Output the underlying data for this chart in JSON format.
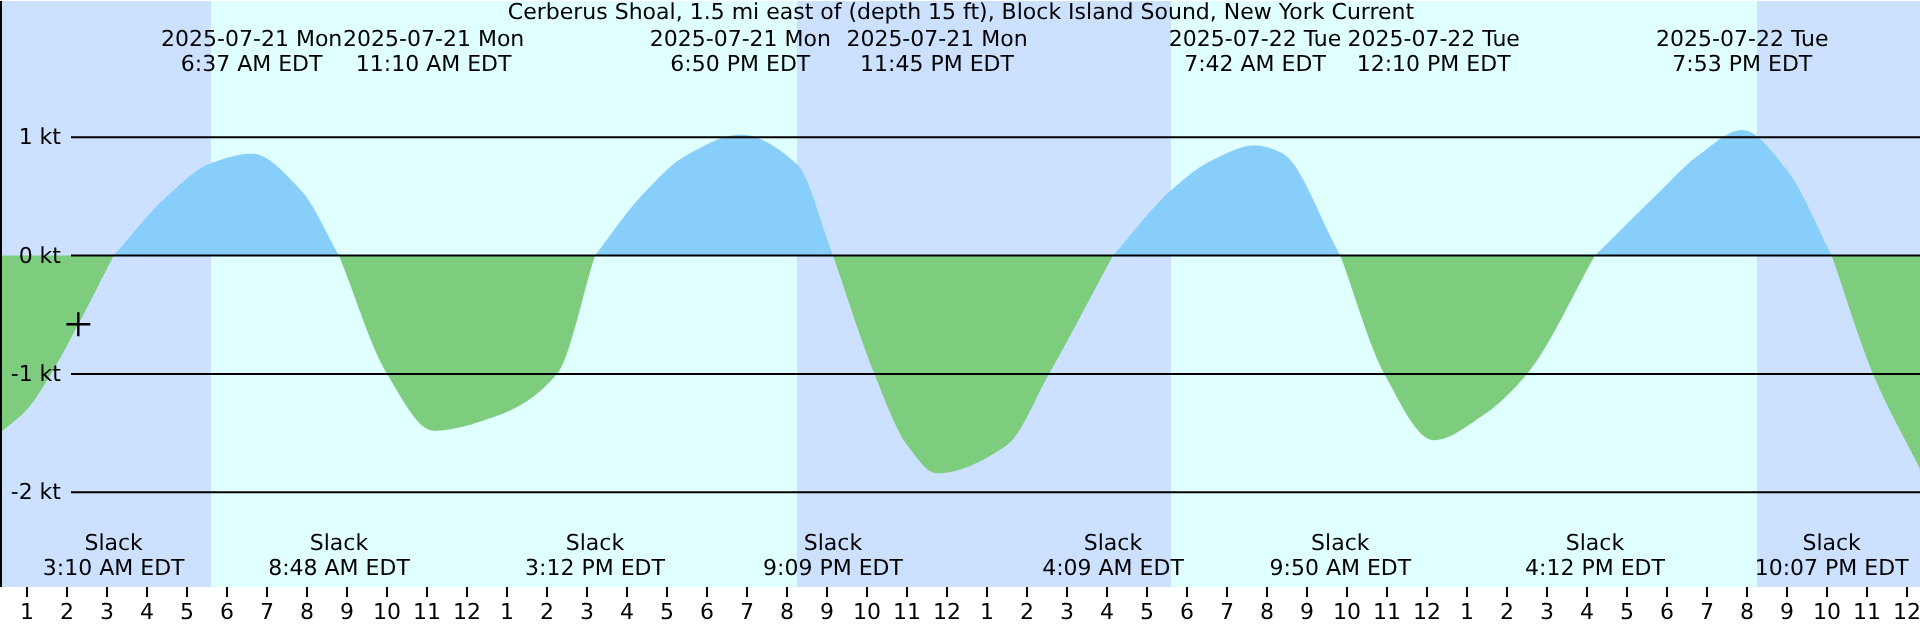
{
  "chart_data": {
    "type": "area",
    "title": "Cerberus Shoal, 1.5 mi east of (depth 15 ft), Block Island Sound, New York Current",
    "x": [
      "2025-07-21T00:21",
      "2025-07-21T01:00",
      "2025-07-21T01:36",
      "2025-07-21T02:17",
      "2025-07-21T03:10",
      "2025-07-21T04:30",
      "2025-07-21T05:36",
      "2025-07-21T06:37",
      "2025-07-21T07:51",
      "2025-07-21T08:48",
      "2025-07-21T10:00",
      "2025-07-21T11:10",
      "2025-07-21T12:42",
      "2025-07-21T14:15",
      "2025-07-21T15:12",
      "2025-07-21T16:21",
      "2025-07-21T17:30",
      "2025-07-21T18:50",
      "2025-07-21T20:15",
      "2025-07-21T21:09",
      "2025-07-21T22:11",
      "2025-07-21T23:00",
      "2025-07-21T23:45",
      "2025-07-22T01:30",
      "2025-07-22T02:33",
      "2025-07-22T04:09",
      "2025-07-22T05:36",
      "2025-07-22T06:36",
      "2025-07-22T07:42",
      "2025-07-22T08:21",
      "2025-07-22T09:50",
      "2025-07-22T10:56",
      "2025-07-22T12:10",
      "2025-07-22T13:24",
      "2025-07-22T14:30",
      "2025-07-22T16:12",
      "2025-07-22T17:42",
      "2025-07-22T18:48",
      "2025-07-22T19:53",
      "2025-07-22T21:00",
      "2025-07-22T22:07",
      "2025-07-22T23:09",
      "2025-07-23T00:21"
    ],
    "series": [
      {
        "color": "#87cefa",
        "values": [
          null,
          null,
          null,
          null,
          0,
          0.5,
          0.78,
          0.86,
          0.55,
          0,
          null,
          null,
          null,
          null,
          0,
          0.5,
          0.85,
          1.02,
          0.77,
          0,
          null,
          null,
          null,
          null,
          null,
          0,
          0.55,
          0.8,
          0.93,
          0.87,
          0,
          null,
          null,
          null,
          null,
          0,
          0.5,
          0.85,
          1.06,
          0.72,
          0,
          null,
          null
        ]
      },
      {
        "color": "#7ecd7e",
        "values": [
          -1.49,
          -1.3,
          -1.0,
          -0.58,
          0,
          null,
          null,
          null,
          null,
          0,
          -1.0,
          -1.48,
          -1.36,
          -1.0,
          0,
          null,
          null,
          null,
          null,
          0,
          -1.0,
          -1.6,
          -1.84,
          -1.6,
          -1.0,
          0,
          null,
          null,
          null,
          null,
          0,
          -1.0,
          -1.56,
          -1.35,
          -1.0,
          0,
          null,
          null,
          null,
          null,
          0,
          -1.0,
          -1.82
        ]
      },
      {
        "type": "scatter",
        "marker": "cross",
        "color": "#000000",
        "x": [
          "2025-07-21T02:17"
        ],
        "values": [
          -0.58
        ]
      }
    ],
    "xlim": [
      "2025-07-21T00:21",
      "2025-07-23T00:21"
    ],
    "ylim": [
      -2.8,
      2.15
    ],
    "xticks": [
      {
        "value": "2025-07-21T01:00",
        "label": "1"
      },
      {
        "value": "2025-07-21T02:00",
        "label": "2"
      },
      {
        "value": "2025-07-21T03:00",
        "label": "3"
      },
      {
        "value": "2025-07-21T04:00",
        "label": "4"
      },
      {
        "value": "2025-07-21T05:00",
        "label": "5"
      },
      {
        "value": "2025-07-21T06:00",
        "label": "6"
      },
      {
        "value": "2025-07-21T07:00",
        "label": "7"
      },
      {
        "value": "2025-07-21T08:00",
        "label": "8"
      },
      {
        "value": "2025-07-21T09:00",
        "label": "9"
      },
      {
        "value": "2025-07-21T10:00",
        "label": "10"
      },
      {
        "value": "2025-07-21T11:00",
        "label": "11"
      },
      {
        "value": "2025-07-21T12:00",
        "label": "12"
      },
      {
        "value": "2025-07-21T13:00",
        "label": "1"
      },
      {
        "value": "2025-07-21T14:00",
        "label": "2"
      },
      {
        "value": "2025-07-21T15:00",
        "label": "3"
      },
      {
        "value": "2025-07-21T16:00",
        "label": "4"
      },
      {
        "value": "2025-07-21T17:00",
        "label": "5"
      },
      {
        "value": "2025-07-21T18:00",
        "label": "6"
      },
      {
        "value": "2025-07-21T19:00",
        "label": "7"
      },
      {
        "value": "2025-07-21T20:00",
        "label": "8"
      },
      {
        "value": "2025-07-21T21:00",
        "label": "9"
      },
      {
        "value": "2025-07-21T22:00",
        "label": "10"
      },
      {
        "value": "2025-07-21T23:00",
        "label": "11"
      },
      {
        "value": "2025-07-22T00:00",
        "label": "12"
      },
      {
        "value": "2025-07-22T01:00",
        "label": "1"
      },
      {
        "value": "2025-07-22T02:00",
        "label": "2"
      },
      {
        "value": "2025-07-22T03:00",
        "label": "3"
      },
      {
        "value": "2025-07-22T04:00",
        "label": "4"
      },
      {
        "value": "2025-07-22T05:00",
        "label": "5"
      },
      {
        "value": "2025-07-22T06:00",
        "label": "6"
      },
      {
        "value": "2025-07-22T07:00",
        "label": "7"
      },
      {
        "value": "2025-07-22T08:00",
        "label": "8"
      },
      {
        "value": "2025-07-22T09:00",
        "label": "9"
      },
      {
        "value": "2025-07-22T10:00",
        "label": "10"
      },
      {
        "value": "2025-07-22T11:00",
        "label": "11"
      },
      {
        "value": "2025-07-22T12:00",
        "label": "12"
      },
      {
        "value": "2025-07-22T13:00",
        "label": "1"
      },
      {
        "value": "2025-07-22T14:00",
        "label": "2"
      },
      {
        "value": "2025-07-22T15:00",
        "label": "3"
      },
      {
        "value": "2025-07-22T16:00",
        "label": "4"
      },
      {
        "value": "2025-07-22T17:00",
        "label": "5"
      },
      {
        "value": "2025-07-22T18:00",
        "label": "6"
      },
      {
        "value": "2025-07-22T19:00",
        "label": "7"
      },
      {
        "value": "2025-07-22T20:00",
        "label": "8"
      },
      {
        "value": "2025-07-22T21:00",
        "label": "9"
      },
      {
        "value": "2025-07-22T22:00",
        "label": "10"
      },
      {
        "value": "2025-07-22T23:00",
        "label": "11"
      },
      {
        "value": "2025-07-23T00:00",
        "label": "12"
      }
    ],
    "yticks": [
      {
        "value": 1,
        "label": "1 kt"
      },
      {
        "value": 0,
        "label": "0 kt"
      },
      {
        "value": -1,
        "label": "-1 kt"
      },
      {
        "value": -2,
        "label": "-2 kt"
      }
    ],
    "grid": "y",
    "bands": [
      {
        "axis": "x",
        "from": "2025-07-21T00:21",
        "to": "2025-07-21T05:36",
        "color": "#cce0ff"
      },
      {
        "axis": "x",
        "from": "2025-07-21T05:36",
        "to": "2025-07-21T20:15",
        "color": "#e0ffff"
      },
      {
        "axis": "x",
        "from": "2025-07-21T20:15",
        "to": "2025-07-22T05:36",
        "color": "#cce0ff"
      },
      {
        "axis": "x",
        "from": "2025-07-22T05:36",
        "to": "2025-07-22T20:15",
        "color": "#e0ffff"
      },
      {
        "axis": "x",
        "from": "2025-07-22T20:15",
        "to": "2025-07-23T00:21",
        "color": "#cce0ff"
      }
    ],
    "annotations": [
      "2025-07-21 Mon\n6:37 AM EDT",
      "2025-07-21 Mon\n11:10 AM EDT",
      "2025-07-21 Mon\n6:50 PM EDT",
      "2025-07-21 Mon\n11:45 PM EDT",
      "2025-07-22 Tue\n7:42 AM EDT",
      "2025-07-22 Tue\n12:10 PM EDT",
      "2025-07-22 Tue\n7:53 PM EDT",
      "Slack\n3:10 AM EDT",
      "Slack\n8:48 AM EDT",
      "Slack\n3:12 PM EDT",
      "Slack\n9:09 PM EDT",
      "Slack\n4:09 AM EDT",
      "Slack\n9:50 AM EDT",
      "Slack\n4:12 PM EDT",
      "Slack\n10:07 PM EDT"
    ]
  }
}
